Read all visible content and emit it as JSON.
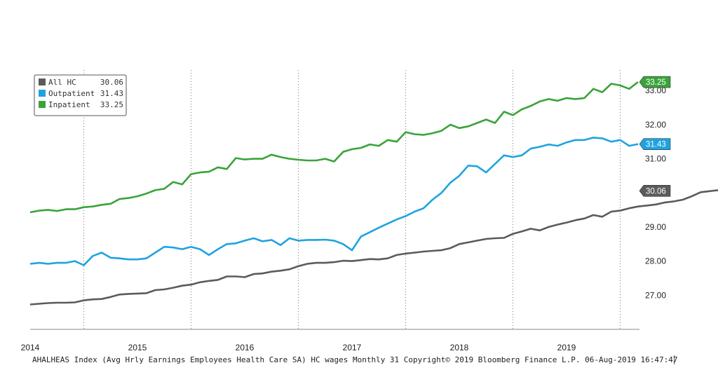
{
  "chart_data": {
    "type": "line",
    "title": "",
    "xlabel": "",
    "ylabel": "",
    "x_start": "2013-07",
    "x_ticks": [
      "2014",
      "2015",
      "2016",
      "2017",
      "2018",
      "2019"
    ],
    "ylim": [
      26,
      33.6
    ],
    "y_ticks": [
      "27.00",
      "28.00",
      "29.00",
      "30.00",
      "31.00",
      "32.00",
      "33.00"
    ],
    "y_tick_values": [
      27,
      28,
      29,
      30,
      31,
      32,
      33
    ],
    "grid": "vertical dotted at year boundaries",
    "legend_position": "top-left",
    "series": [
      {
        "name": "All HC",
        "legend_value": "30.06",
        "tag": "30.06",
        "color": "#5b5b5b",
        "tag_color": "#5b5b5b",
        "values": [
          26.73,
          26.75,
          26.77,
          26.78,
          26.78,
          26.79,
          26.85,
          26.88,
          26.89,
          26.95,
          27.02,
          27.04,
          27.05,
          27.06,
          27.15,
          27.17,
          27.22,
          27.28,
          27.31,
          27.38,
          27.42,
          27.45,
          27.55,
          27.55,
          27.53,
          27.62,
          27.64,
          27.69,
          27.72,
          27.76,
          27.85,
          27.92,
          27.95,
          27.95,
          27.97,
          28.01,
          28.0,
          28.03,
          28.06,
          28.05,
          28.08,
          28.18,
          28.22,
          28.25,
          28.28,
          28.3,
          28.32,
          28.38,
          28.5,
          28.55,
          28.6,
          28.65,
          28.67,
          28.68,
          28.8,
          28.87,
          28.95,
          28.9,
          29.0,
          29.07,
          29.13,
          29.2,
          29.25,
          29.35,
          29.3,
          29.45,
          29.48,
          29.55,
          29.6,
          29.63,
          29.66,
          29.72,
          29.75,
          29.8,
          29.9,
          30.02,
          30.05,
          30.08,
          30.0,
          29.95,
          30.06
        ]
      },
      {
        "name": "Outpatient",
        "legend_value": "31.43",
        "tag": "31.43",
        "color": "#1fa3e0",
        "tag_color": "#1fa3e0",
        "values": [
          27.92,
          27.95,
          27.92,
          27.95,
          27.95,
          28.0,
          27.88,
          28.15,
          28.25,
          28.1,
          28.08,
          28.05,
          28.05,
          28.08,
          28.25,
          28.42,
          28.4,
          28.35,
          28.42,
          28.35,
          28.18,
          28.35,
          28.5,
          28.52,
          28.6,
          28.67,
          28.58,
          28.62,
          28.47,
          28.67,
          28.6,
          28.62,
          28.62,
          28.63,
          28.6,
          28.5,
          28.32,
          28.72,
          28.85,
          28.98,
          29.1,
          29.22,
          29.32,
          29.45,
          29.55,
          29.8,
          30.0,
          30.3,
          30.5,
          30.8,
          30.78,
          30.6,
          30.85,
          31.1,
          31.05,
          31.1,
          31.3,
          31.35,
          31.42,
          31.38,
          31.48,
          31.55,
          31.55,
          31.62,
          31.6,
          31.5,
          31.55,
          31.38,
          31.43
        ]
      },
      {
        "name": "Inpatient",
        "legend_value": "33.25",
        "tag": "33.25",
        "color": "#3aa33a",
        "tag_color": "#3aa33a",
        "values": [
          29.43,
          29.48,
          29.5,
          29.47,
          29.52,
          29.52,
          29.58,
          29.6,
          29.65,
          29.68,
          29.82,
          29.85,
          29.9,
          29.98,
          30.08,
          30.12,
          30.32,
          30.25,
          30.55,
          30.6,
          30.62,
          30.75,
          30.7,
          31.02,
          30.98,
          31.0,
          31.0,
          31.12,
          31.05,
          31.0,
          30.97,
          30.95,
          30.95,
          31.0,
          30.92,
          31.2,
          31.28,
          31.32,
          31.42,
          31.38,
          31.55,
          31.5,
          31.78,
          31.72,
          31.7,
          31.75,
          31.82,
          32.0,
          31.9,
          31.95,
          32.05,
          32.15,
          32.05,
          32.38,
          32.28,
          32.45,
          32.55,
          32.68,
          32.75,
          32.7,
          32.78,
          32.75,
          32.78,
          33.05,
          32.95,
          33.2,
          33.15,
          33.05,
          33.25
        ]
      }
    ]
  },
  "footer": "AHALHEAS Index (Avg Hrly Earnings Employees Health Care SA) HC wages  Monthly 31 Copyright© 2019 Bloomberg Finance L.P. 06-Aug-2019 16:47:47"
}
